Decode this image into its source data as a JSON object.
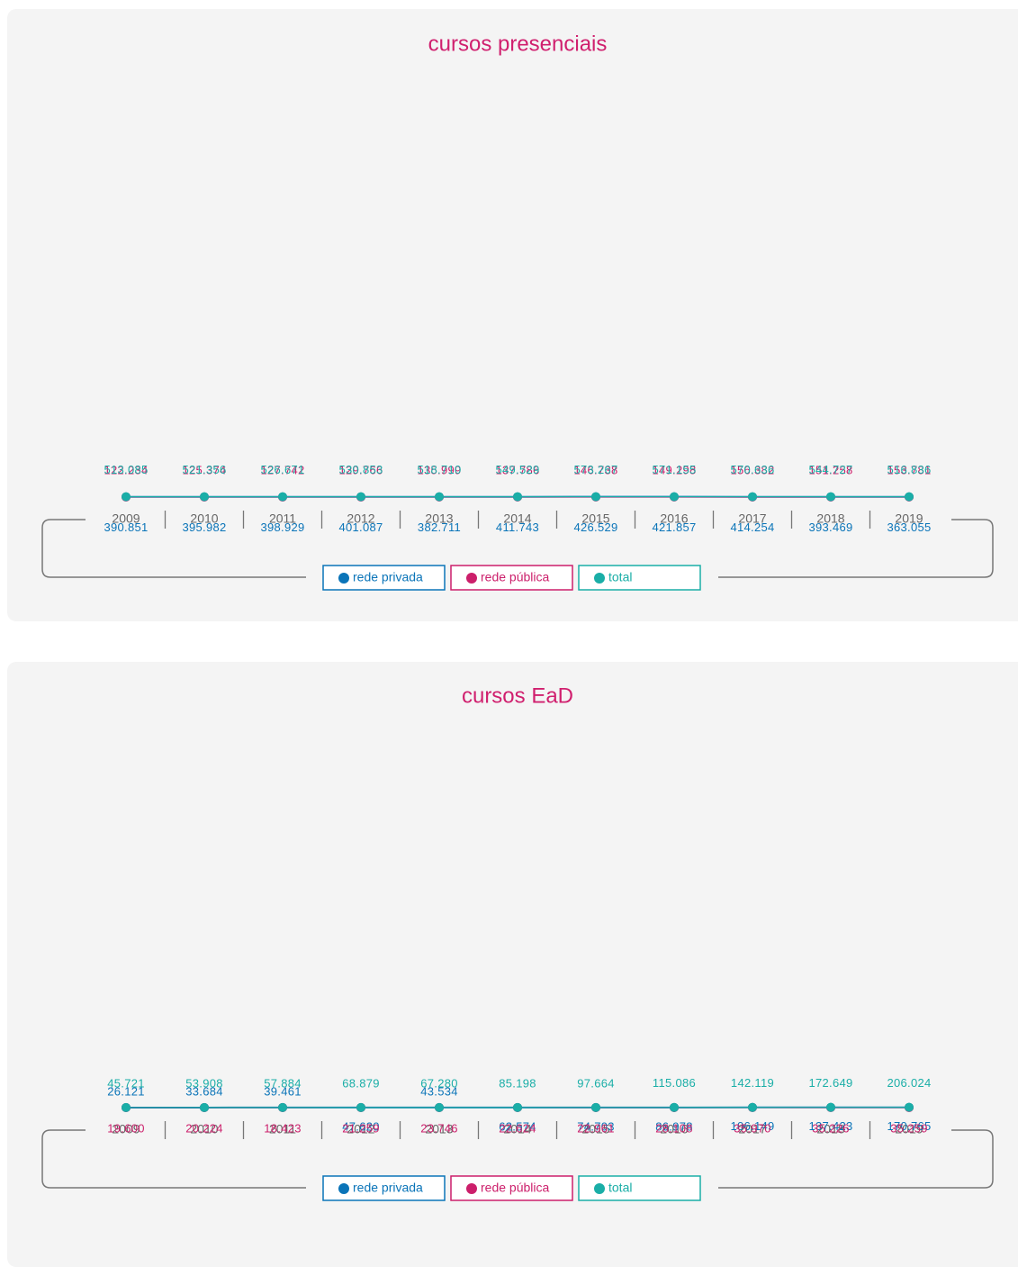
{
  "chart_data": [
    {
      "type": "line",
      "title": "cursos presenciais",
      "categories": [
        "2009",
        "2010",
        "2011",
        "2012",
        "2013",
        "2014",
        "2015",
        "2016",
        "2017",
        "2018",
        "2019"
      ],
      "ylim": [
        0,
        600
      ],
      "series": [
        {
          "name": "rede privada",
          "color": "#0a74b8",
          "values": [
            390851,
            395982,
            398929,
            401087,
            382711,
            411743,
            426529,
            421857,
            414254,
            393469,
            363055
          ],
          "value_labels": [
            "390.851",
            "395.982",
            "398.929",
            "401.087",
            "382.711",
            "411.743",
            "426.529",
            "421.857",
            "414.254",
            "393.469",
            "363.055"
          ]
        },
        {
          "name": "rede pública",
          "color": "#cc1f6b",
          "values": [
            122234,
            125374,
            127742,
            129766,
            135999,
            137786,
            146738,
            149298,
            156382,
            151258,
            153781
          ],
          "value_labels": [
            "122.234",
            "125.374",
            "127.742",
            "129.766",
            "135.999",
            "137.786",
            "146.738",
            "149.298",
            "156.382",
            "151.258",
            "153.781"
          ]
        },
        {
          "name": "total",
          "color": "#1aaea7",
          "values": [
            513085,
            521356,
            526671,
            530853,
            518710,
            549529,
            573267,
            571155,
            570636,
            544727,
            516836
          ],
          "value_labels": [
            "513.085",
            "521.356",
            "526.671",
            "530.853",
            "518.710",
            "549.529",
            "573.267",
            "571.155",
            "570.636",
            "544.727",
            "516.836"
          ]
        }
      ]
    },
    {
      "type": "line",
      "title": "cursos EaD",
      "categories": [
        "2009",
        "2010",
        "2011",
        "2012",
        "2013",
        "2014",
        "2015",
        "2016",
        "2017",
        "2018",
        "2019"
      ],
      "ylim": [
        0,
        220
      ],
      "series": [
        {
          "name": "rede privada",
          "color": "#0a74b8",
          "values": [
            26121,
            33684,
            39461,
            47620,
            43534,
            62574,
            74703,
            86978,
            106149,
            137423,
            170765
          ],
          "value_labels": [
            "26.121",
            "33.684",
            "39.461",
            "47.620",
            "43.534",
            "62.574",
            "74.703",
            "86.978",
            "106.149",
            "137.423",
            "170.765"
          ]
        },
        {
          "name": "rede pública",
          "color": "#cc1f6b",
          "values": [
            19600,
            20224,
            18423,
            21259,
            23746,
            22624,
            22961,
            28108,
            35970,
            35226,
            35259
          ],
          "value_labels": [
            "19.600",
            "20.224",
            "18.423",
            "21.259",
            "23.746",
            "22.624",
            "22.961",
            "28.108",
            "35.970",
            "35.226",
            "35.259"
          ]
        },
        {
          "name": "total",
          "color": "#1aaea7",
          "values": [
            45721,
            53908,
            57884,
            68879,
            67280,
            85198,
            97664,
            115086,
            142119,
            172649,
            206024
          ],
          "value_labels": [
            "45.721",
            "53.908",
            "57.884",
            "68.879",
            "67.280",
            "85.198",
            "97.664",
            "115.086",
            "142.119",
            "172.649",
            "206.024"
          ]
        }
      ]
    }
  ]
}
